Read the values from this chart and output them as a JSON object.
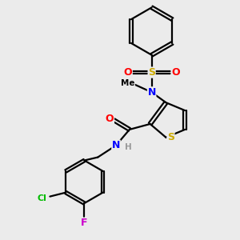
{
  "background_color": "#ebebeb",
  "figsize": [
    3.0,
    3.0
  ],
  "dpi": 100,
  "atom_colors": {
    "C": "#000000",
    "N": "#0000ff",
    "O": "#ff0000",
    "S": "#ccaa00",
    "Cl": "#00bb00",
    "F": "#cc00cc",
    "H": "#999999"
  },
  "bond_color": "#000000",
  "bond_width": 1.6,
  "font_size_atom": 9
}
